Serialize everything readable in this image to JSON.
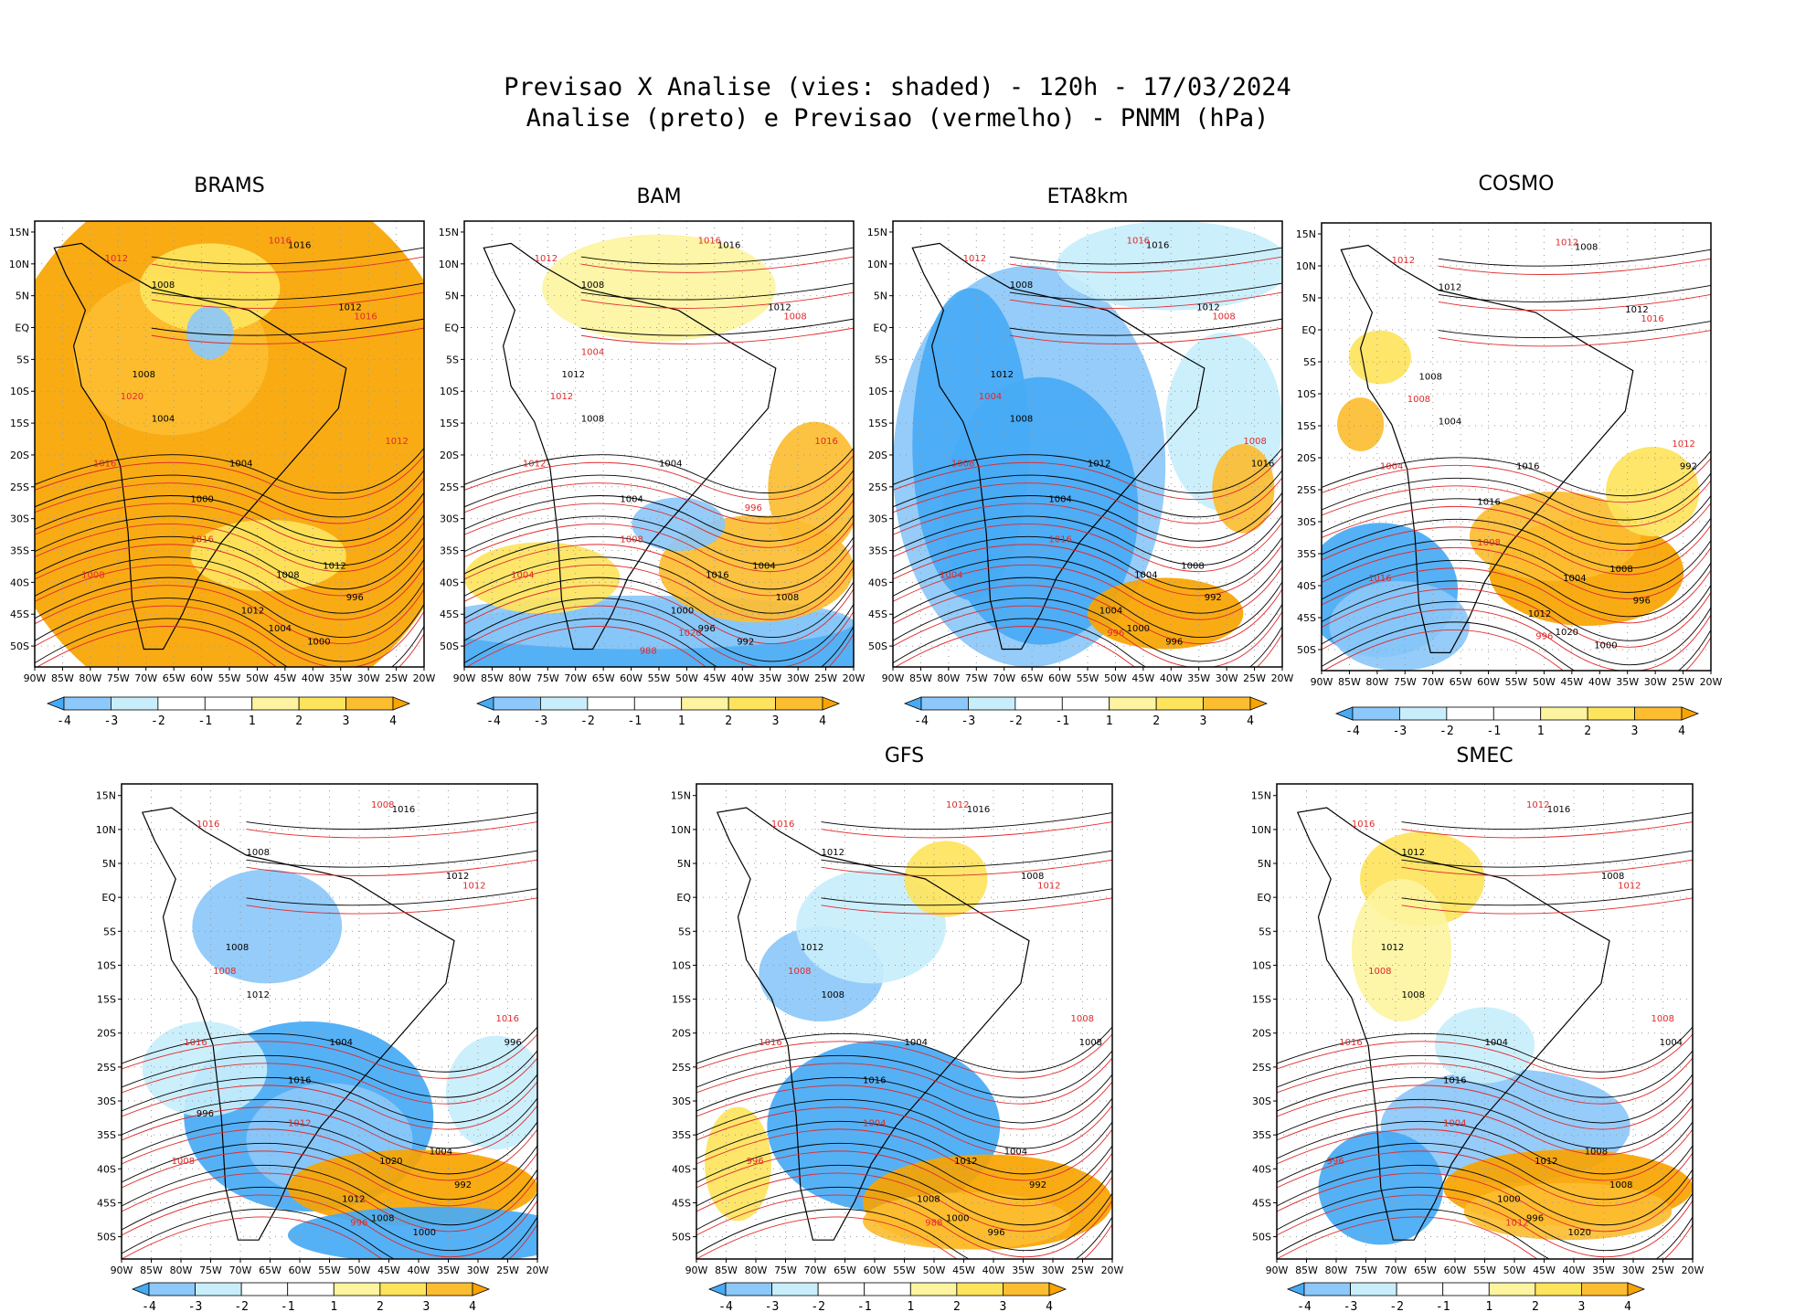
{
  "title": {
    "line1": "Previsao X Analise (vies: shaded) - 120h - 17/03/2024",
    "line2": "Analise (preto) e Previsao (vermelho) - PNMM (hPa)"
  },
  "colors": {
    "analysis_contour": "#000000",
    "forecast_contour": "#e0292b",
    "bias_scale": [
      "#47aaf5",
      "#8cc8f9",
      "#c8eefc",
      "#ffffff",
      "#ffffff",
      "#fdf4a0",
      "#fde45d",
      "#fcbd31",
      "#f9a400"
    ]
  },
  "chart_data": {
    "type": "heatmap",
    "variable": "PNMM (hPa)",
    "shaded": "bias (forecast - analysis)",
    "x_ticks": [
      "90W",
      "85W",
      "80W",
      "75W",
      "70W",
      "65W",
      "60W",
      "55W",
      "50W",
      "45W",
      "40W",
      "35W",
      "30W",
      "25W",
      "20W"
    ],
    "y_ticks": [
      "15N",
      "10N",
      "5N",
      "EQ",
      "5S",
      "10S",
      "15S",
      "20S",
      "25S",
      "30S",
      "35S",
      "40S",
      "45S",
      "50S"
    ],
    "colorbar_labels": [
      "-4",
      "-3",
      "-2",
      "-1",
      "1",
      "2",
      "3",
      "4"
    ],
    "panels": [
      {
        "name": "BRAMS",
        "bias": "mostly positive (+2 to +4) across domain",
        "analysis_labels": [
          "1016",
          "1012",
          "1008",
          "1008",
          "1004",
          "1004",
          "1000",
          "1008",
          "1012",
          "1012",
          "1004",
          "1000",
          "996"
        ],
        "forecast_labels": [
          "1012",
          "1016",
          "1016",
          "1020",
          "1016",
          "1012",
          "1016",
          "1008"
        ]
      },
      {
        "name": "BAM",
        "bias": "positive in Atlantic, negative south of 40S",
        "analysis_labels": [
          "1016",
          "1012",
          "1008",
          "1012",
          "1008",
          "1004",
          "1004",
          "1016",
          "1004",
          "1000",
          "996",
          "992",
          "1008"
        ],
        "forecast_labels": [
          "1012",
          "1016",
          "1008",
          "1012",
          "1012",
          "1016",
          "1008",
          "1004",
          "1020",
          "1004",
          "996",
          "988"
        ]
      },
      {
        "name": "ETA8km",
        "bias": "mostly negative over continent",
        "analysis_labels": [
          "1016",
          "1012",
          "1008",
          "1012",
          "1008",
          "1012",
          "1004",
          "1004",
          "1008",
          "1004",
          "1000",
          "996",
          "992",
          "1016"
        ],
        "forecast_labels": [
          "1012",
          "1016",
          "1008",
          "1004",
          "1008",
          "1008",
          "1016",
          "1004",
          "996"
        ]
      },
      {
        "name": "COSMO",
        "bias": "negative south-west, positive south Atlantic",
        "analysis_labels": [
          "1008",
          "1012",
          "1012",
          "1008",
          "1004",
          "1016",
          "1016",
          "1004",
          "1008",
          "1012",
          "1020",
          "1000",
          "996",
          "992"
        ],
        "forecast_labels": [
          "1012",
          "1012",
          "1016",
          "1008",
          "1004",
          "1012",
          "1008",
          "1016",
          "996"
        ]
      },
      {
        "name": "",
        "bias": "negative centered near 40S 60W",
        "analysis_labels": [
          "1016",
          "1012",
          "1008",
          "1008",
          "1012",
          "1004",
          "1016",
          "1020",
          "1004",
          "1012",
          "1008",
          "1000",
          "992",
          "996",
          "996"
        ],
        "forecast_labels": [
          "1016",
          "1008",
          "1012",
          "1008",
          "1016",
          "1016",
          "1012",
          "1008",
          "996"
        ]
      },
      {
        "name": "GFS",
        "bias": "negative over southern continent, positive 45S Atlantic",
        "analysis_labels": [
          "1016",
          "1008",
          "1012",
          "1012",
          "1008",
          "1004",
          "1016",
          "1012",
          "1004",
          "1008",
          "1000",
          "996",
          "992",
          "1008"
        ],
        "forecast_labels": [
          "1016",
          "1012",
          "1012",
          "1008",
          "1016",
          "1008",
          "1004",
          "996",
          "988"
        ]
      },
      {
        "name": "SMEC",
        "bias": "mixed, positive south Atlantic",
        "analysis_labels": [
          "1016",
          "1008",
          "1012",
          "1012",
          "1008",
          "1004",
          "1016",
          "1012",
          "1008",
          "1000",
          "996",
          "1020",
          "1008",
          "1004"
        ],
        "forecast_labels": [
          "1016",
          "1012",
          "1012",
          "1008",
          "1016",
          "1008",
          "1004",
          "996",
          "1012"
        ]
      }
    ]
  }
}
